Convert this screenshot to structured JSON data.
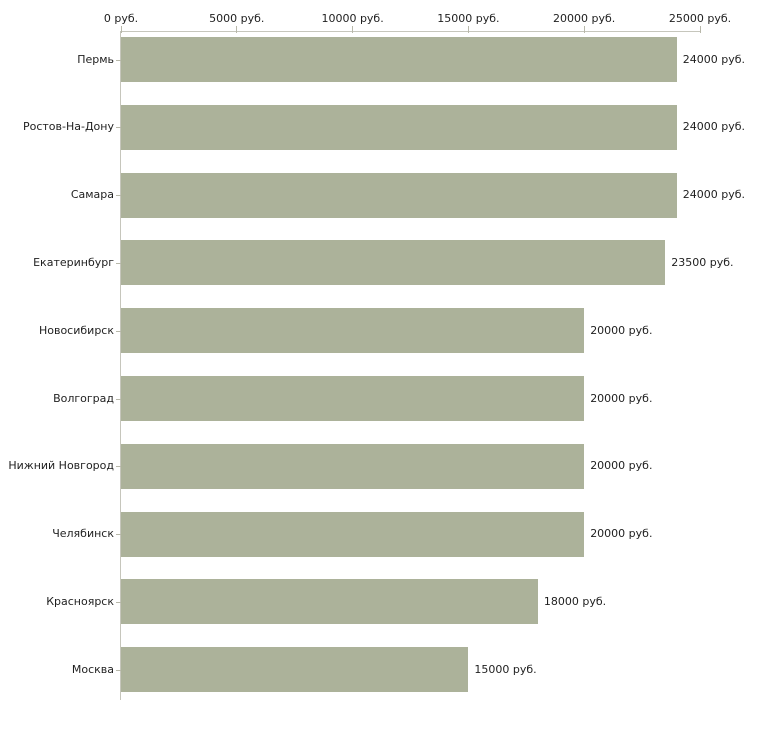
{
  "chart_data": {
    "type": "bar",
    "orientation": "horizontal",
    "title": "",
    "categories": [
      "Пермь",
      "Ростов-На-Дону",
      "Самара",
      "Екатеринбург",
      "Новосибирск",
      "Волгоград",
      "Нижний Новгород",
      "Челябинск",
      "Красноярск",
      "Москва"
    ],
    "values": [
      24000,
      24000,
      24000,
      23500,
      20000,
      20000,
      20000,
      20000,
      18000,
      15000
    ],
    "value_labels": [
      "24000 руб.",
      "24000 руб.",
      "24000 руб.",
      "23500 руб.",
      "20000 руб.",
      "20000 руб.",
      "20000 руб.",
      "20000 руб.",
      "18000 руб.",
      "15000 руб."
    ],
    "unit": "руб.",
    "x_axis": {
      "position": "top",
      "range": [
        0,
        25000
      ],
      "ticks": [
        0,
        5000,
        10000,
        15000,
        20000,
        25000
      ],
      "tick_labels": [
        "0 руб.",
        "5000 руб.",
        "10000 руб.",
        "15000 руб.",
        "20000 руб.",
        "25000 руб."
      ]
    },
    "grid": false,
    "legend": false,
    "colors": {
      "bar": "#acb29a",
      "axis": "#c6c6bc",
      "tick": "#b8b8aa",
      "text": "#1f1f1f",
      "background": "#ffffff"
    }
  }
}
